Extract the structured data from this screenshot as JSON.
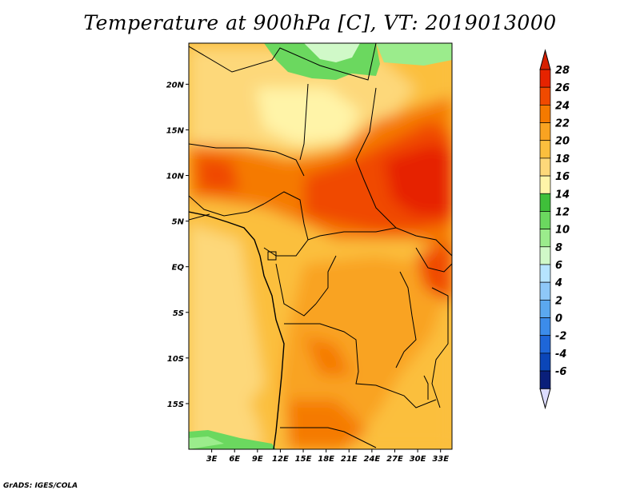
{
  "title": "Temperature at 900hPa [C], VT: 2019013000",
  "credit": "GrADS: IGES/COLA",
  "map": {
    "lat_labels": [
      "20N",
      "15N",
      "10N",
      "5N",
      "EQ",
      "5S",
      "10S",
      "15S"
    ],
    "lat_values": [
      20,
      15,
      10,
      5,
      0,
      -5,
      -10,
      -15
    ],
    "lon_labels": [
      "3E",
      "6E",
      "9E",
      "12E",
      "15E",
      "18E",
      "21E",
      "24E",
      "27E",
      "30E",
      "33E"
    ],
    "lon_values": [
      3,
      6,
      9,
      12,
      15,
      18,
      21,
      24,
      27,
      30,
      33
    ],
    "lon_range": [
      0,
      34.5
    ],
    "lat_range": [
      -20,
      24.5
    ]
  },
  "colorbar": {
    "labels": [
      "28",
      "26",
      "24",
      "22",
      "20",
      "18",
      "16",
      "14",
      "12",
      "10",
      "8",
      "6",
      "4",
      "2",
      "0",
      "-2",
      "-4",
      "-6"
    ],
    "colors": [
      "#e62300",
      "#f04a00",
      "#f57a00",
      "#f9a321",
      "#fbbf3e",
      "#fdd87a",
      "#fff4a8",
      "#3fbf3a",
      "#6bd85f",
      "#9bec8c",
      "#d0f9c8",
      "#b6e4ff",
      "#8ec8f8",
      "#5ba8ef",
      "#3c8cea",
      "#1e66d8",
      "#0b46b8",
      "#0a1f7a"
    ],
    "top_color": "#d72000",
    "bottom_color": "#dcdcff"
  }
}
